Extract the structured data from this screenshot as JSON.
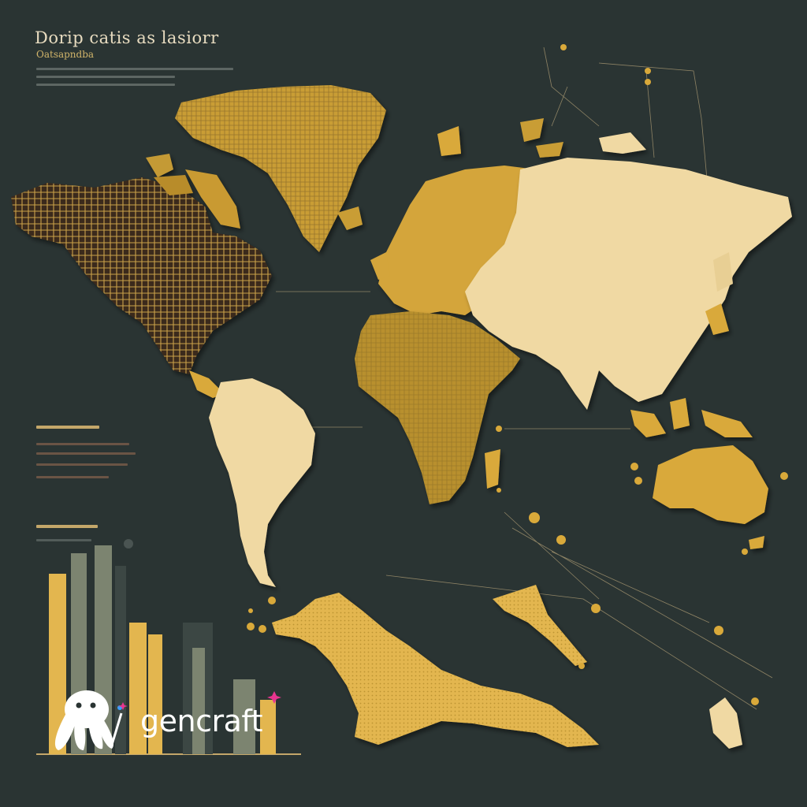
{
  "heading": {
    "title": "Dorip catis as lasiorr",
    "subtitle": "Oatsapndba"
  },
  "watermark": {
    "brand": "gencraft"
  },
  "colors": {
    "background": "#2a3433",
    "gold": "#d9a93a",
    "cream": "#f0d9a3",
    "olive": "#7c8470",
    "dark_brown": "#3a2a1e"
  },
  "icons": [
    "octopus-logo-icon",
    "sparkle-icon",
    "magic-wand-icon"
  ]
}
